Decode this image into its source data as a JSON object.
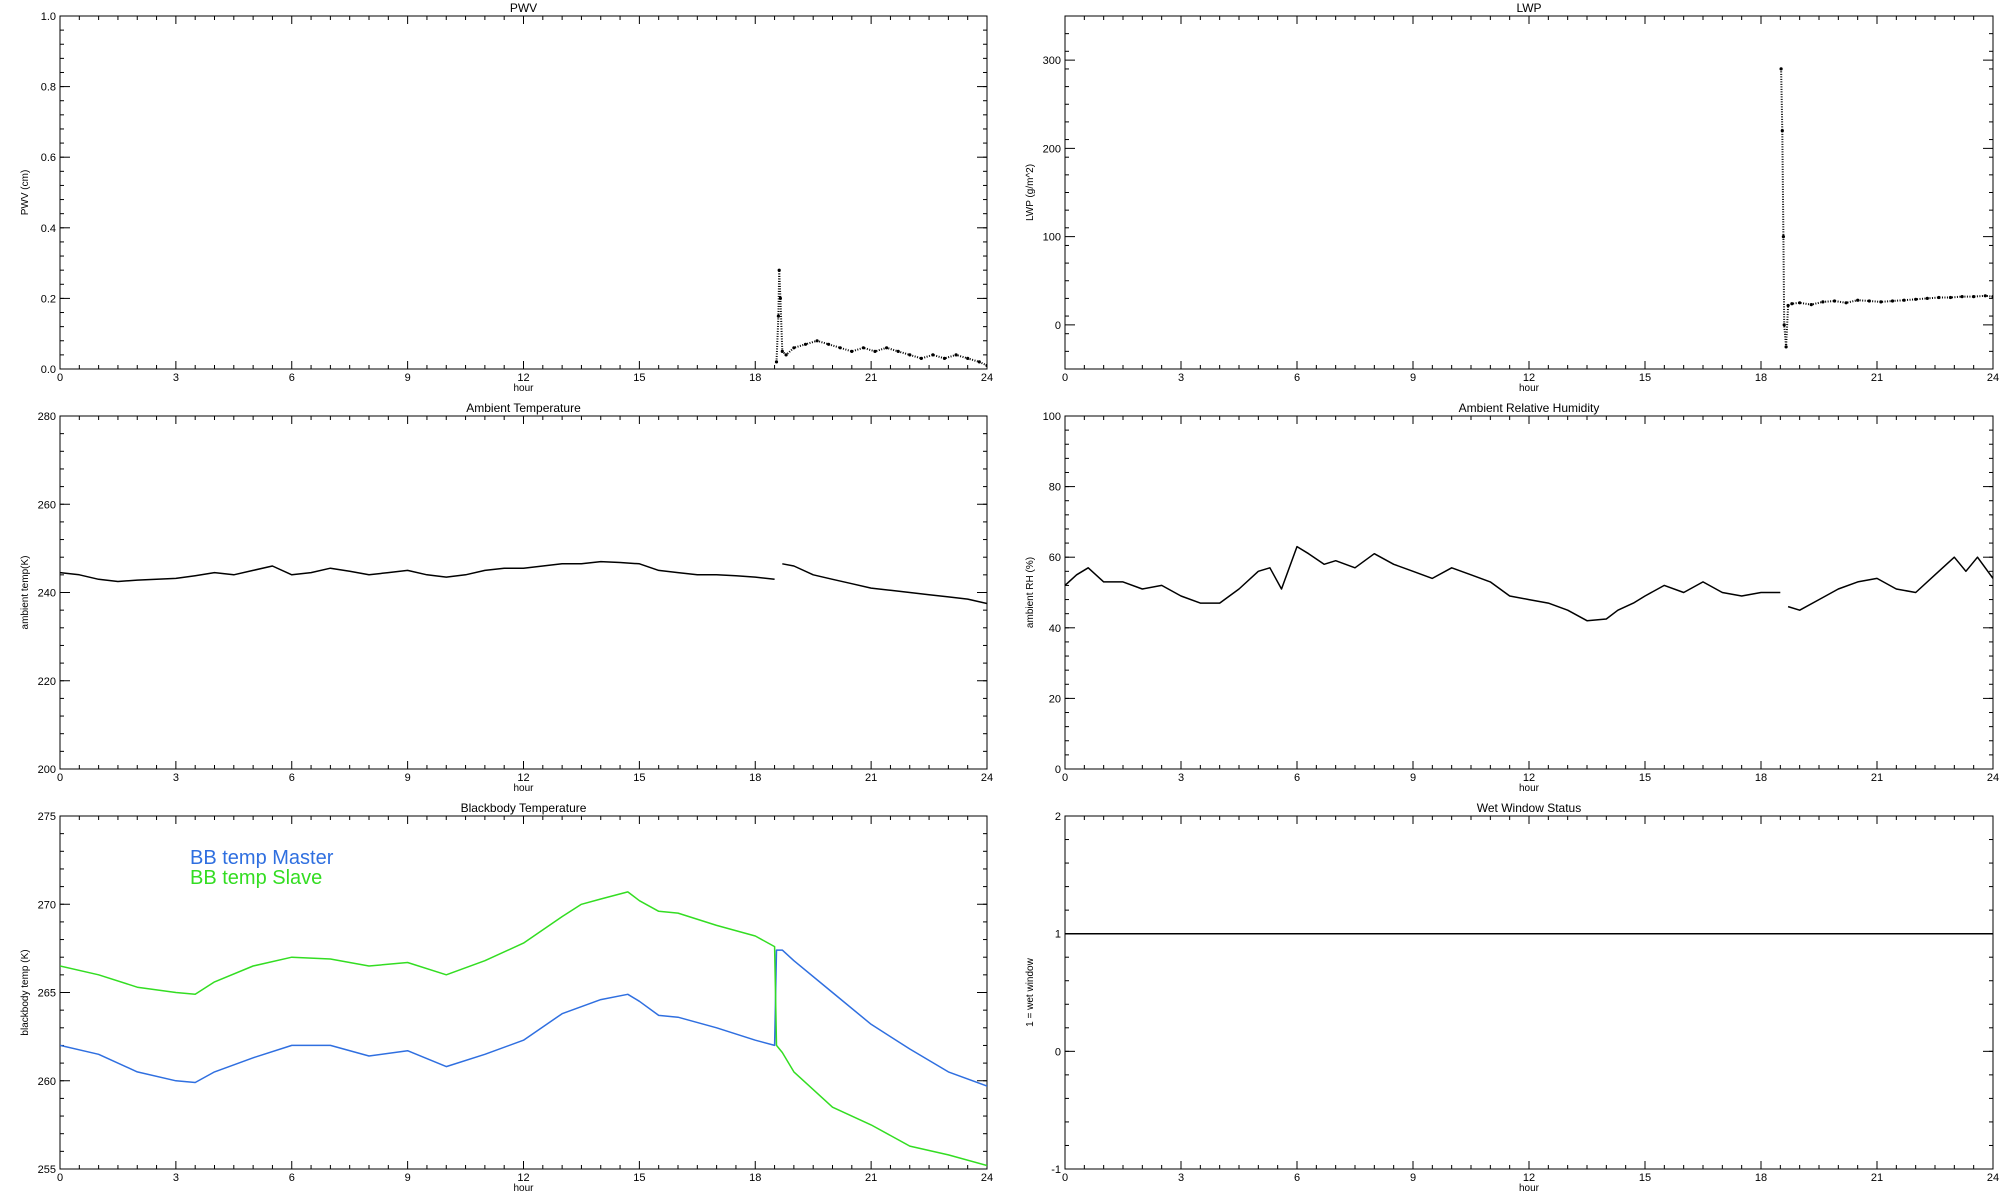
{
  "chart_data": [
    {
      "type": "scatter",
      "title": "PWV",
      "xlabel": "hour",
      "ylabel": "PWV (cm)",
      "xlim": [
        0,
        24
      ],
      "ylim": [
        0,
        1
      ],
      "xticks": [
        0,
        3,
        6,
        9,
        12,
        15,
        18,
        21,
        24
      ],
      "yticks": [
        0.0,
        0.2,
        0.4,
        0.6,
        0.8,
        1.0
      ],
      "ytick_labels": [
        "0.0",
        "0.2",
        "0.4",
        "0.6",
        "0.8",
        "1.0"
      ],
      "series": [
        {
          "color": "#000000",
          "x": [
            18.55,
            18.6,
            18.62,
            18.65,
            18.7,
            18.8,
            19.0,
            19.3,
            19.6,
            19.9,
            20.2,
            20.5,
            20.8,
            21.1,
            21.4,
            21.7,
            22.0,
            22.3,
            22.6,
            22.9,
            23.2,
            23.5,
            23.8,
            24.0
          ],
          "y": [
            0.02,
            0.15,
            0.28,
            0.2,
            0.05,
            0.04,
            0.06,
            0.07,
            0.08,
            0.07,
            0.06,
            0.05,
            0.06,
            0.05,
            0.06,
            0.05,
            0.04,
            0.03,
            0.04,
            0.03,
            0.04,
            0.03,
            0.02,
            0.01
          ]
        }
      ]
    },
    {
      "type": "scatter",
      "title": "LWP",
      "xlabel": "hour",
      "ylabel": "LWP (g/m^2)",
      "xlim": [
        0,
        24
      ],
      "ylim": [
        -50,
        350
      ],
      "xticks": [
        0,
        3,
        6,
        9,
        12,
        15,
        18,
        21,
        24
      ],
      "yticks": [
        0,
        100,
        200,
        300
      ],
      "ytick_labels": [
        "0",
        "100",
        "200",
        "300"
      ],
      "series": [
        {
          "color": "#000000",
          "x": [
            18.52,
            18.55,
            18.58,
            18.6,
            18.65,
            18.7,
            18.8,
            19.0,
            19.3,
            19.6,
            19.9,
            20.2,
            20.5,
            20.8,
            21.1,
            21.4,
            21.7,
            22.0,
            22.3,
            22.6,
            22.9,
            23.2,
            23.5,
            23.8,
            24.0
          ],
          "y": [
            290,
            220,
            100,
            0,
            -25,
            22,
            24,
            25,
            23,
            26,
            27,
            25,
            28,
            27,
            26,
            27,
            28,
            29,
            30,
            31,
            31,
            32,
            32,
            33,
            32
          ]
        }
      ]
    },
    {
      "type": "line",
      "title": "Ambient Temperature",
      "xlabel": "hour",
      "ylabel": "ambient temp(K)",
      "xlim": [
        0,
        24
      ],
      "ylim": [
        200,
        280
      ],
      "xticks": [
        0,
        3,
        6,
        9,
        12,
        15,
        18,
        21,
        24
      ],
      "yticks": [
        200,
        220,
        240,
        260,
        280
      ],
      "ytick_labels": [
        "200",
        "220",
        "240",
        "260",
        "280"
      ],
      "series": [
        {
          "color": "#000000",
          "segments": [
            {
              "x": [
                0,
                0.5,
                1,
                1.5,
                2,
                2.5,
                3,
                3.5,
                4,
                4.5,
                5,
                5.5,
                6,
                6.5,
                7,
                7.5,
                8,
                8.5,
                9,
                9.5,
                10,
                10.5,
                11,
                11.5,
                12,
                12.5,
                13,
                13.5,
                14,
                14.5,
                15,
                15.5,
                16,
                16.5,
                17,
                17.5,
                18,
                18.5
              ],
              "y": [
                244.5,
                244,
                243,
                242.5,
                242.8,
                243,
                243.2,
                243.8,
                244.5,
                244,
                245,
                246,
                244,
                244.5,
                245.5,
                244.8,
                244,
                244.5,
                245,
                244,
                243.5,
                244,
                245,
                245.5,
                245.5,
                246,
                246.5,
                246.5,
                247,
                246.8,
                246.5,
                245,
                244.5,
                244,
                244,
                243.8,
                243.5,
                243
              ]
            },
            {
              "x": [
                18.7,
                19,
                19.5,
                20,
                20.5,
                21,
                21.5,
                22,
                22.5,
                23,
                23.5,
                24
              ],
              "y": [
                246.5,
                246,
                244,
                243,
                242,
                241,
                240.5,
                240,
                239.5,
                239,
                238.5,
                237.5
              ]
            }
          ]
        }
      ]
    },
    {
      "type": "line",
      "title": "Ambient Relative Humidity",
      "xlabel": "hour",
      "ylabel": "ambient RH (%)",
      "xlim": [
        0,
        24
      ],
      "ylim": [
        0,
        100
      ],
      "xticks": [
        0,
        3,
        6,
        9,
        12,
        15,
        18,
        21,
        24
      ],
      "yticks": [
        0,
        20,
        40,
        60,
        80,
        100
      ],
      "ytick_labels": [
        "0",
        "20",
        "40",
        "60",
        "80",
        "100"
      ],
      "series": [
        {
          "color": "#000000",
          "segments": [
            {
              "x": [
                0,
                0.3,
                0.6,
                1,
                1.5,
                2,
                2.5,
                3,
                3.5,
                4,
                4.5,
                5,
                5.3,
                5.6,
                6,
                6.3,
                6.7,
                7,
                7.5,
                8,
                8.5,
                9,
                9.5,
                10,
                10.5,
                11,
                11.5,
                12,
                12.5,
                13,
                13.5,
                14,
                14.3,
                14.7,
                15,
                15.5,
                16,
                16.5,
                17,
                17.5,
                18,
                18.5
              ],
              "y": [
                52,
                55,
                57,
                53,
                53,
                51,
                52,
                49,
                47,
                47,
                51,
                56,
                57,
                51,
                63,
                61,
                58,
                59,
                57,
                61,
                58,
                56,
                54,
                57,
                55,
                53,
                49,
                48,
                47,
                45,
                42,
                42.5,
                45,
                47,
                49,
                52,
                50,
                53,
                50,
                49,
                50,
                50
              ]
            },
            {
              "x": [
                18.7,
                19,
                19.5,
                20,
                20.5,
                21,
                21.5,
                22,
                22.5,
                23,
                23.3,
                23.6,
                24
              ],
              "y": [
                46,
                45,
                48,
                51,
                53,
                54,
                51,
                50,
                55,
                60,
                56,
                60,
                54
              ]
            }
          ]
        }
      ]
    },
    {
      "type": "line",
      "title": "Blackbody Temperature",
      "xlabel": "hour",
      "ylabel": "blackbody temp (K)",
      "xlim": [
        0,
        24
      ],
      "ylim": [
        255,
        275
      ],
      "xticks": [
        0,
        3,
        6,
        9,
        12,
        15,
        18,
        21,
        24
      ],
      "yticks": [
        255,
        260,
        265,
        270,
        275
      ],
      "ytick_labels": [
        "255",
        "260",
        "265",
        "270",
        "275"
      ],
      "legend_position": "top-left",
      "series": [
        {
          "name": "BB temp Master",
          "color": "#2f6fe0",
          "x": [
            0,
            1,
            2,
            3,
            3.5,
            4,
            5,
            6,
            7,
            8,
            9,
            10,
            11,
            12,
            13,
            14,
            14.7,
            15,
            15.5,
            16,
            17,
            18,
            18.5,
            18.55,
            18.7,
            19,
            20,
            21,
            22,
            23,
            24
          ],
          "y": [
            262,
            261.5,
            260.5,
            260,
            259.9,
            260.5,
            261.3,
            262,
            262,
            261.4,
            261.7,
            260.8,
            261.5,
            262.3,
            263.8,
            264.6,
            264.9,
            264.5,
            263.7,
            263.6,
            263,
            262.3,
            262,
            267.4,
            267.4,
            266.8,
            265,
            263.2,
            261.8,
            260.5,
            259.7
          ]
        },
        {
          "name": "BB temp Slave",
          "color": "#33dd22",
          "x": [
            0,
            1,
            2,
            3,
            3.5,
            4,
            5,
            6,
            7,
            8,
            9,
            10,
            11,
            12,
            13,
            13.5,
            14,
            14.7,
            15,
            15.5,
            16,
            17,
            18,
            18.5,
            18.55,
            18.7,
            19,
            20,
            21,
            22,
            23,
            24
          ],
          "y": [
            266.5,
            266,
            265.3,
            265,
            264.9,
            265.6,
            266.5,
            267,
            266.9,
            266.5,
            266.7,
            266,
            266.8,
            267.8,
            269.3,
            270,
            270.3,
            270.7,
            270.2,
            269.6,
            269.5,
            268.8,
            268.2,
            267.6,
            262,
            261.6,
            260.5,
            258.5,
            257.5,
            256.3,
            255.8,
            255.2
          ]
        }
      ]
    },
    {
      "type": "line",
      "title": "Wet Window Status",
      "xlabel": "hour",
      "ylabel": "1 = wet window",
      "xlim": [
        0,
        24
      ],
      "ylim": [
        -1,
        2
      ],
      "xticks": [
        0,
        3,
        6,
        9,
        12,
        15,
        18,
        21,
        24
      ],
      "yticks": [
        -1,
        0,
        1,
        2
      ],
      "ytick_labels": [
        "-1",
        "0",
        "1",
        "2"
      ],
      "series": [
        {
          "color": "#000000",
          "x": [
            0,
            24
          ],
          "y": [
            1,
            1
          ]
        }
      ]
    }
  ]
}
